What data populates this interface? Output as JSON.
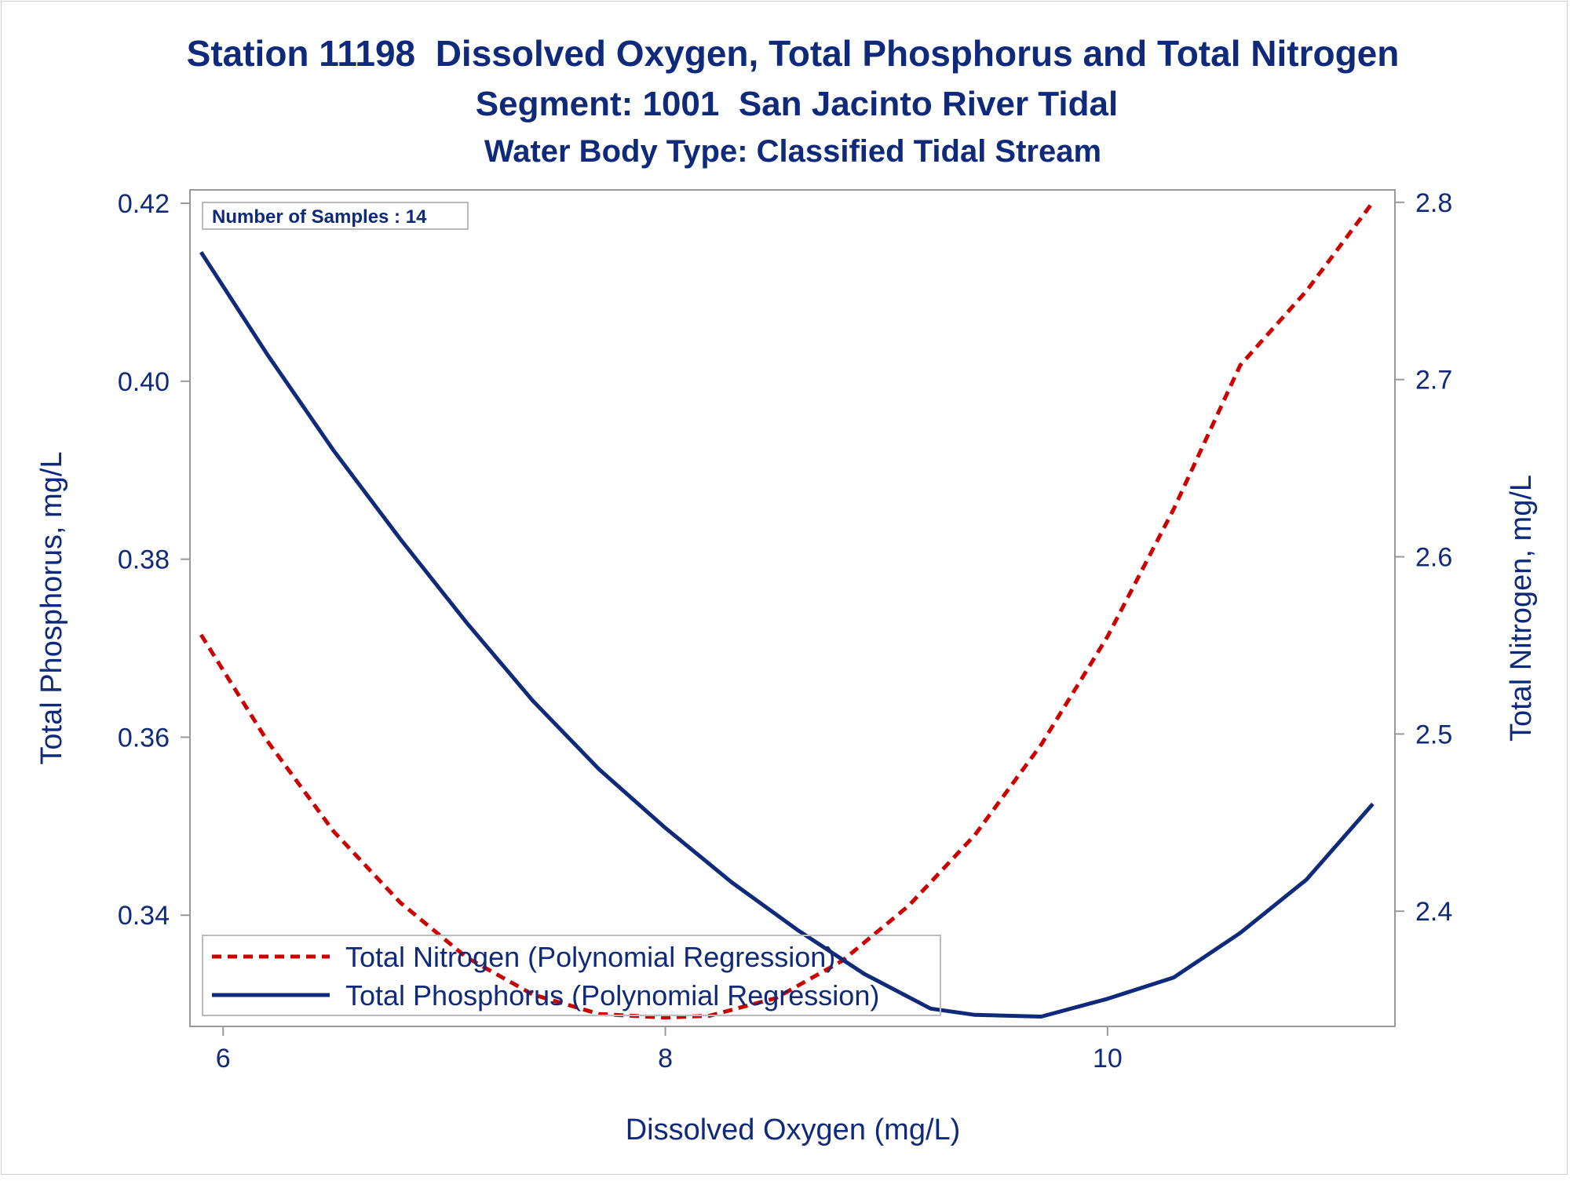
{
  "chart_data": {
    "type": "line",
    "title": "Station 11198  Dissolved Oxygen, Total Phosphorus and Total Nitrogen",
    "subtitle": "Segment: 1001  San Jacinto River Tidal",
    "subtitle2": "Water Body Type: Classified Tidal Stream",
    "xlabel": "Dissolved Oxygen (mg/L)",
    "ylabel_left": "Total Phosphorus, mg/L",
    "ylabel_right": "Total Nitrogen, mg/L",
    "xlim": [
      5.85,
      11.3
    ],
    "ylim_left": [
      0.3275,
      0.4215
    ],
    "ylim_right": [
      2.335,
      2.807
    ],
    "x_ticks": [
      6,
      8,
      10
    ],
    "x_tick_labels": [
      "6",
      "8",
      "10"
    ],
    "y_left_ticks": [
      0.34,
      0.36,
      0.38,
      0.4,
      0.42
    ],
    "y_left_tick_labels": [
      "0.34",
      "0.36",
      "0.38",
      "0.40",
      "0.42"
    ],
    "y_right_ticks": [
      2.4,
      2.5,
      2.6,
      2.7,
      2.8
    ],
    "y_right_tick_labels": [
      "2.4",
      "2.5",
      "2.6",
      "2.7",
      "2.8"
    ],
    "grid": false,
    "legend_position": "bottom-left",
    "inset_label": "Number of Samples : 14",
    "series": [
      {
        "name": "Total Nitrogen (Polynomial Regression)",
        "axis": "right",
        "color": "#cc0000",
        "dash": "dashed",
        "x": [
          5.9,
          6.2,
          6.5,
          6.8,
          7.1,
          7.4,
          7.7,
          8.0,
          8.2,
          8.5,
          8.8,
          9.1,
          9.4,
          9.7,
          10.0,
          10.3,
          10.6,
          10.9,
          11.2
        ],
        "y": [
          2.556,
          2.496,
          2.445,
          2.405,
          2.374,
          2.353,
          2.342,
          2.34,
          2.341,
          2.351,
          2.372,
          2.403,
          2.443,
          2.494,
          2.555,
          2.627,
          2.708,
          2.75,
          2.8
        ]
      },
      {
        "name": "Total Phosphorus (Polynomial Regression)",
        "axis": "left",
        "color": "#0f2a7a",
        "dash": "solid",
        "x": [
          5.9,
          6.2,
          6.5,
          6.8,
          7.1,
          7.4,
          7.7,
          8.0,
          8.3,
          8.6,
          8.9,
          9.2,
          9.4,
          9.7,
          10.0,
          10.3,
          10.6,
          10.9,
          11.2
        ],
        "y": [
          0.4145,
          0.403,
          0.3922,
          0.3823,
          0.3729,
          0.3641,
          0.3564,
          0.3498,
          0.3437,
          0.3383,
          0.3334,
          0.3295,
          0.3288,
          0.3286,
          0.3306,
          0.333,
          0.338,
          0.344,
          0.3525
        ]
      }
    ]
  }
}
